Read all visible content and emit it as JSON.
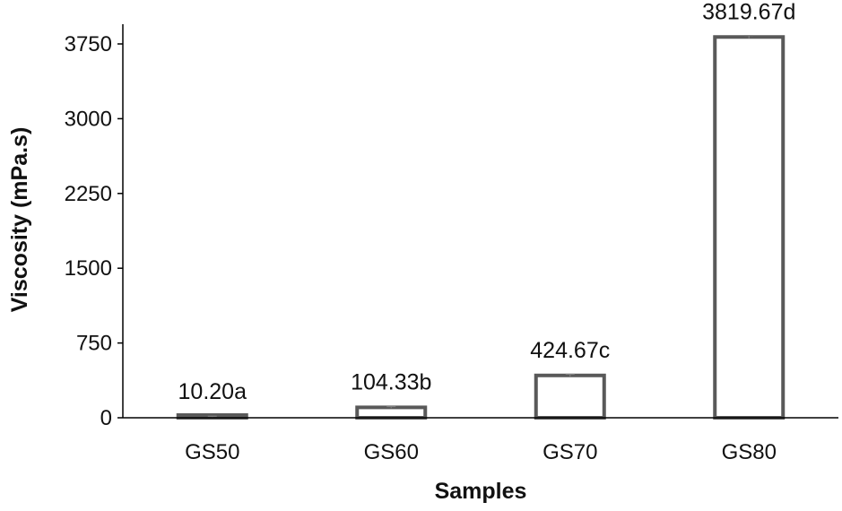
{
  "chart_data": {
    "type": "bar",
    "categories": [
      "GS50",
      "GS60",
      "GS70",
      "GS80"
    ],
    "values": [
      10.2,
      104.33,
      424.67,
      3819.67
    ],
    "errors": [
      5,
      8,
      12,
      15
    ],
    "data_labels": [
      "10.20a",
      "104.33b",
      "424.67c",
      "3819.67d"
    ],
    "xlabel": "Samples",
    "ylabel": "Viscosity (mPa.s)",
    "ylim": [
      0,
      3750
    ],
    "yticks": [
      0,
      750,
      1500,
      2250,
      3000,
      3750
    ],
    "ytick_labels": [
      "0",
      "750",
      "1500",
      "2250",
      "3000",
      "3750"
    ],
    "grid": false,
    "bar_fill": "#ffffff",
    "bar_stroke": "#595959",
    "axis_color": "#000000"
  }
}
